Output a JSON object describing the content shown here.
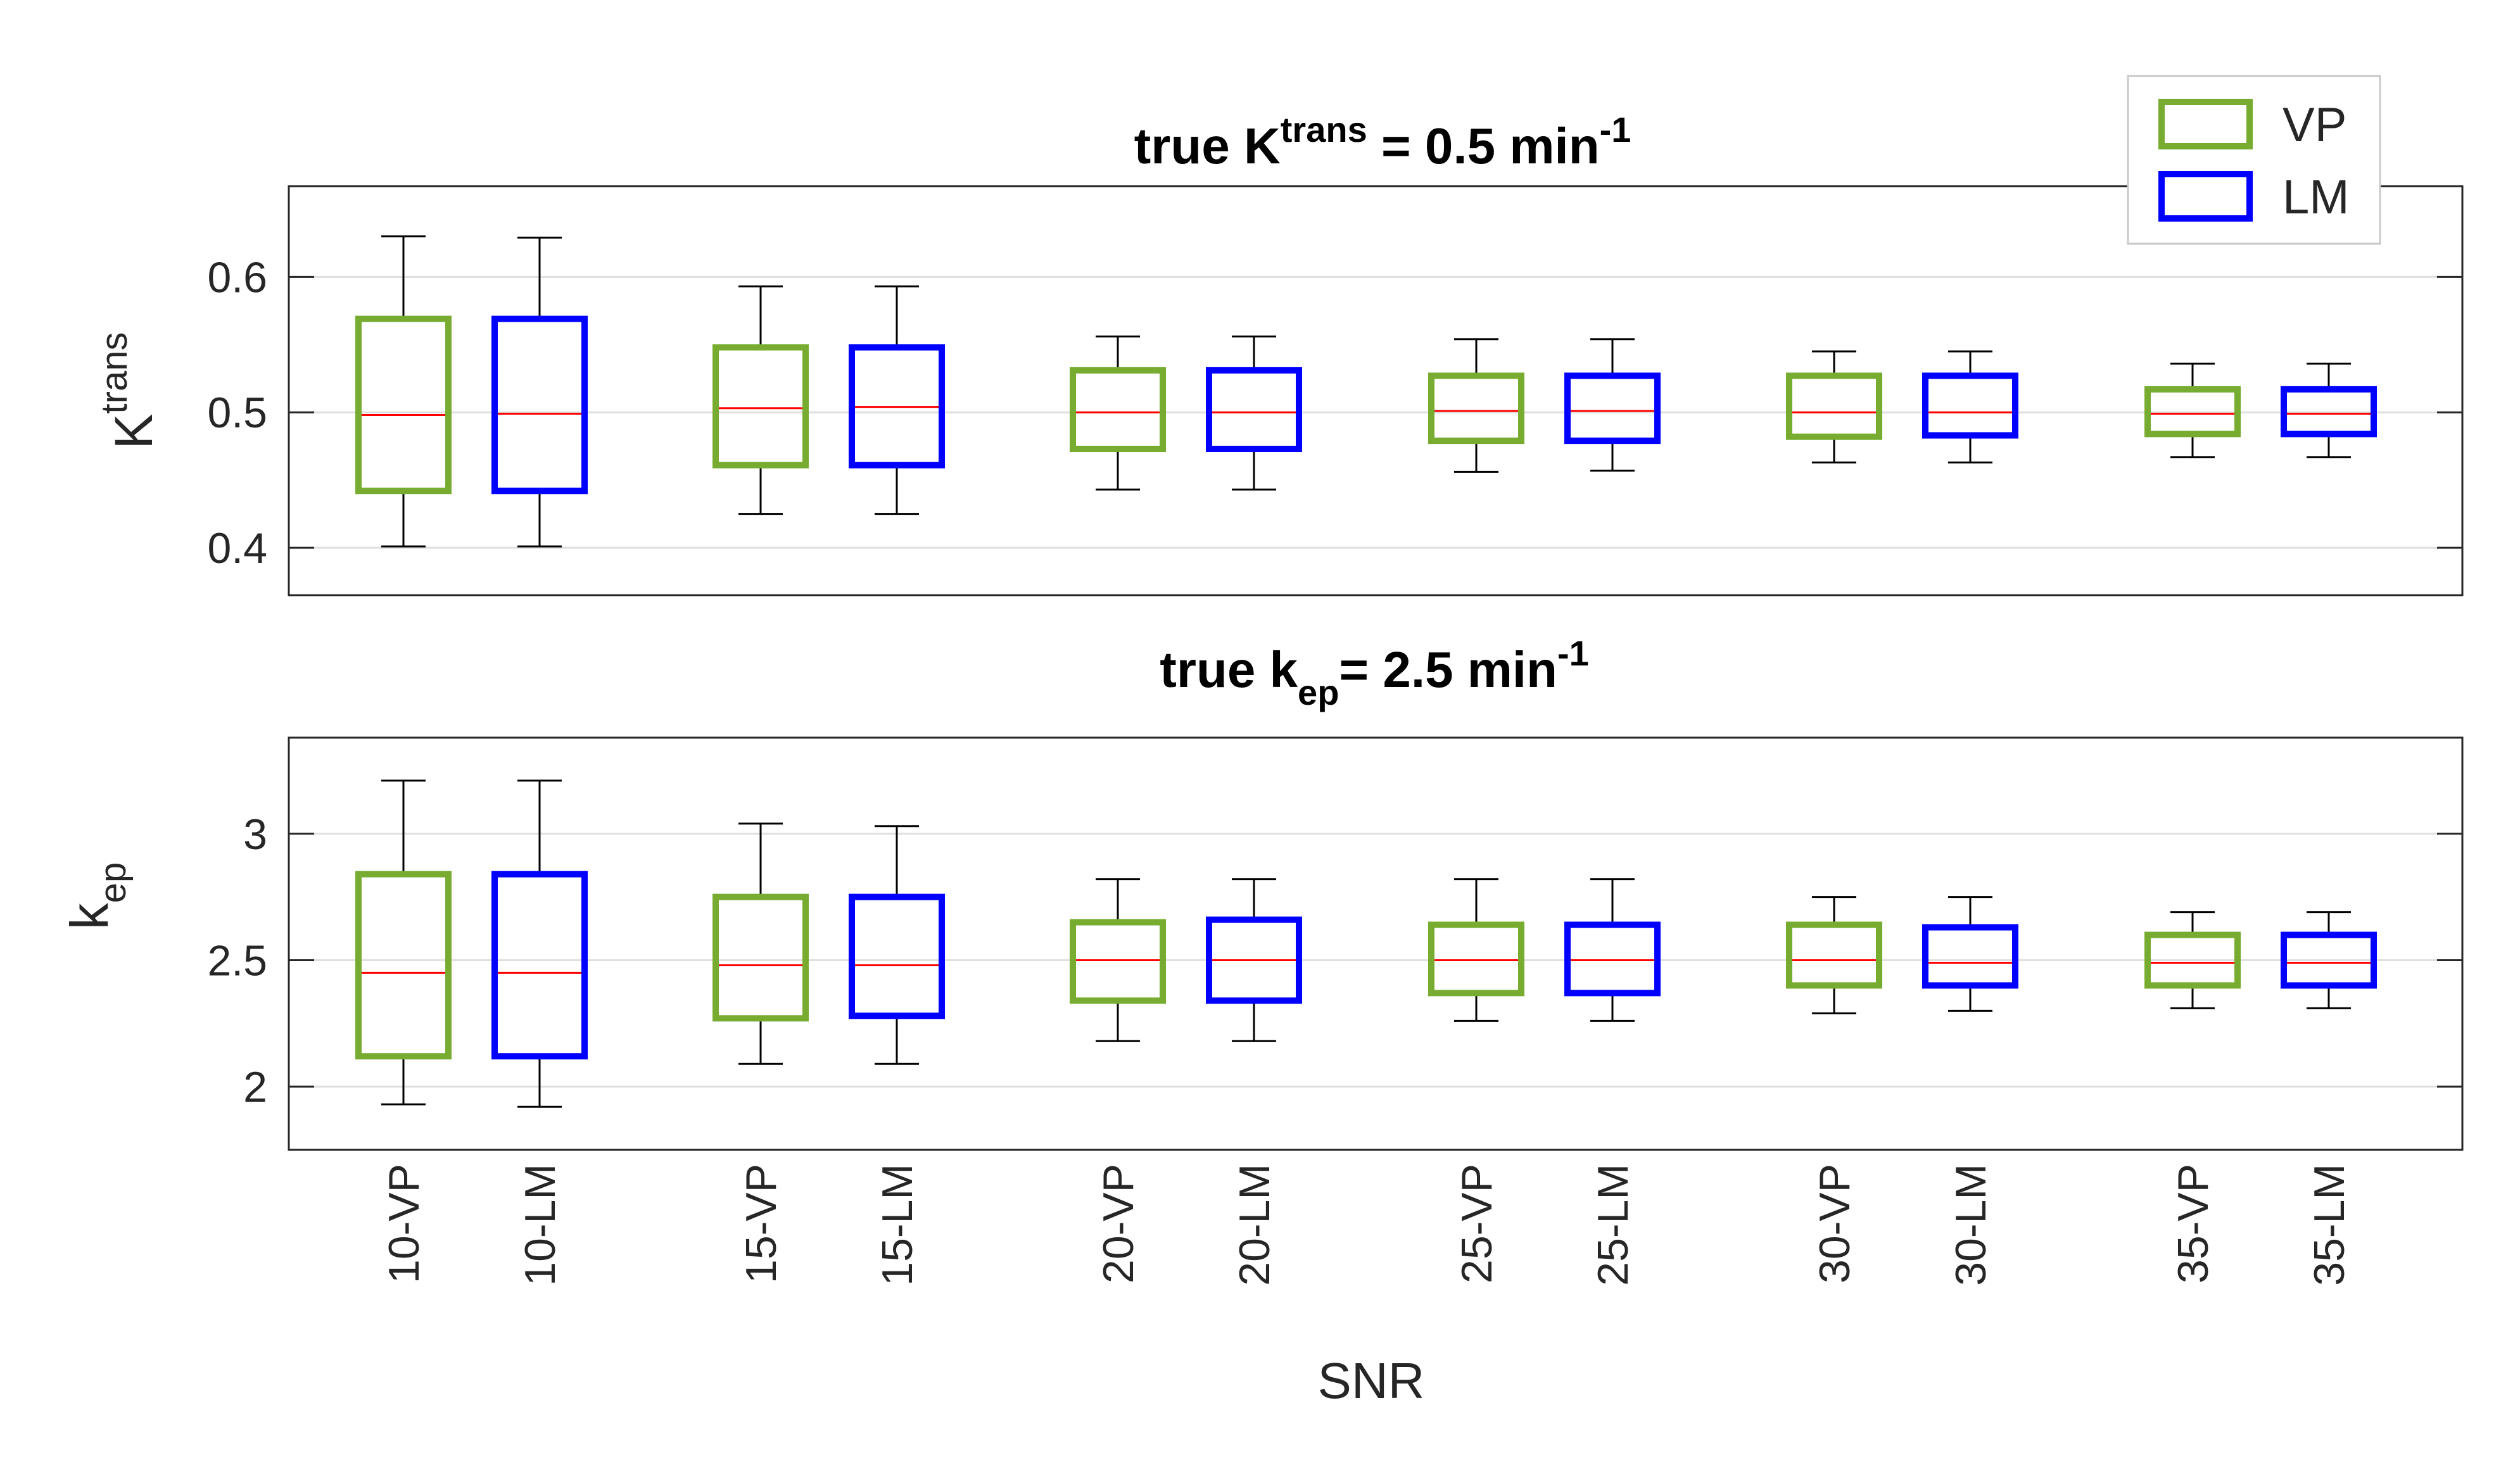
{
  "chart_data": [
    {
      "type": "box",
      "title": {
        "main": "true K",
        "sup": "trans",
        "rest": " = 0.5 min",
        "unit_sup": "-1"
      },
      "ylabel": {
        "main": "K",
        "sup": "trans"
      },
      "ylim": [
        0.365,
        0.667
      ],
      "yticks": [
        "0.4",
        "0.5",
        "0.6"
      ],
      "ytick_values": [
        0.4,
        0.5,
        0.6
      ],
      "grid": true,
      "boxes": [
        {
          "label": "10-VP",
          "method": "VP",
          "whisker_low": 0.401,
          "q1": 0.442,
          "median": 0.498,
          "q3": 0.569,
          "whisker_high": 0.63
        },
        {
          "label": "10-LM",
          "method": "LM",
          "whisker_low": 0.401,
          "q1": 0.442,
          "median": 0.499,
          "q3": 0.569,
          "whisker_high": 0.629
        },
        {
          "label": "15-VP",
          "method": "VP",
          "whisker_low": 0.425,
          "q1": 0.461,
          "median": 0.503,
          "q3": 0.548,
          "whisker_high": 0.593
        },
        {
          "label": "15-LM",
          "method": "LM",
          "whisker_low": 0.425,
          "q1": 0.461,
          "median": 0.504,
          "q3": 0.548,
          "whisker_high": 0.593
        },
        {
          "label": "20-VP",
          "method": "VP",
          "whisker_low": 0.443,
          "q1": 0.473,
          "median": 0.5,
          "q3": 0.531,
          "whisker_high": 0.556
        },
        {
          "label": "20-LM",
          "method": "LM",
          "whisker_low": 0.443,
          "q1": 0.473,
          "median": 0.5,
          "q3": 0.531,
          "whisker_high": 0.556
        },
        {
          "label": "25-VP",
          "method": "VP",
          "whisker_low": 0.456,
          "q1": 0.479,
          "median": 0.501,
          "q3": 0.527,
          "whisker_high": 0.554
        },
        {
          "label": "25-LM",
          "method": "LM",
          "whisker_low": 0.457,
          "q1": 0.479,
          "median": 0.501,
          "q3": 0.527,
          "whisker_high": 0.554
        },
        {
          "label": "30-VP",
          "method": "VP",
          "whisker_low": 0.463,
          "q1": 0.482,
          "median": 0.5,
          "q3": 0.527,
          "whisker_high": 0.545
        },
        {
          "label": "30-LM",
          "method": "LM",
          "whisker_low": 0.463,
          "q1": 0.483,
          "median": 0.5,
          "q3": 0.527,
          "whisker_high": 0.545
        },
        {
          "label": "35-VP",
          "method": "VP",
          "whisker_low": 0.467,
          "q1": 0.484,
          "median": 0.499,
          "q3": 0.517,
          "whisker_high": 0.536
        },
        {
          "label": "35-LM",
          "method": "LM",
          "whisker_low": 0.467,
          "q1": 0.484,
          "median": 0.499,
          "q3": 0.517,
          "whisker_high": 0.536
        }
      ]
    },
    {
      "type": "box",
      "title": {
        "main": "true k",
        "sub": "ep",
        "rest": "= 2.5 min",
        "unit_sup": "-1"
      },
      "ylabel": {
        "main": "k",
        "sub": "ep"
      },
      "ylim": [
        1.75,
        3.38
      ],
      "yticks": [
        "2",
        "2.5",
        "3"
      ],
      "ytick_values": [
        2,
        2.5,
        3
      ],
      "grid": true,
      "xlabel": "SNR",
      "categories": [
        "10-VP",
        "10-LM",
        "15-VP",
        "15-LM",
        "20-VP",
        "20-LM",
        "25-VP",
        "25-LM",
        "30-VP",
        "30-LM",
        "35-VP",
        "35-LM"
      ],
      "boxes": [
        {
          "label": "10-VP",
          "method": "VP",
          "whisker_low": 1.93,
          "q1": 2.12,
          "median": 2.45,
          "q3": 2.84,
          "whisker_high": 3.21
        },
        {
          "label": "10-LM",
          "method": "LM",
          "whisker_low": 1.92,
          "q1": 2.12,
          "median": 2.45,
          "q3": 2.84,
          "whisker_high": 3.21
        },
        {
          "label": "15-VP",
          "method": "VP",
          "whisker_low": 2.09,
          "q1": 2.27,
          "median": 2.48,
          "q3": 2.75,
          "whisker_high": 3.04
        },
        {
          "label": "15-LM",
          "method": "LM",
          "whisker_low": 2.09,
          "q1": 2.28,
          "median": 2.48,
          "q3": 2.75,
          "whisker_high": 3.03
        },
        {
          "label": "20-VP",
          "method": "VP",
          "whisker_low": 2.18,
          "q1": 2.34,
          "median": 2.5,
          "q3": 2.65,
          "whisker_high": 2.82
        },
        {
          "label": "20-LM",
          "method": "LM",
          "whisker_low": 2.18,
          "q1": 2.34,
          "median": 2.5,
          "q3": 2.66,
          "whisker_high": 2.82
        },
        {
          "label": "25-VP",
          "method": "VP",
          "whisker_low": 2.26,
          "q1": 2.37,
          "median": 2.5,
          "q3": 2.64,
          "whisker_high": 2.82
        },
        {
          "label": "25-LM",
          "method": "LM",
          "whisker_low": 2.26,
          "q1": 2.37,
          "median": 2.5,
          "q3": 2.64,
          "whisker_high": 2.82
        },
        {
          "label": "30-VP",
          "method": "VP",
          "whisker_low": 2.29,
          "q1": 2.4,
          "median": 2.5,
          "q3": 2.64,
          "whisker_high": 2.75
        },
        {
          "label": "30-LM",
          "method": "LM",
          "whisker_low": 2.3,
          "q1": 2.4,
          "median": 2.49,
          "q3": 2.63,
          "whisker_high": 2.75
        },
        {
          "label": "35-VP",
          "method": "VP",
          "whisker_low": 2.31,
          "q1": 2.4,
          "median": 2.49,
          "q3": 2.6,
          "whisker_high": 2.69
        },
        {
          "label": "35-LM",
          "method": "LM",
          "whisker_low": 2.31,
          "q1": 2.4,
          "median": 2.49,
          "q3": 2.6,
          "whisker_high": 2.69
        }
      ]
    }
  ],
  "legend": {
    "placement": "top-right",
    "items": [
      {
        "label": "VP",
        "color": "#77ac30"
      },
      {
        "label": "LM",
        "color": "#0000ff"
      }
    ]
  },
  "colors": {
    "VP": "#77ac30",
    "LM": "#0000ff",
    "median": "#ff0000",
    "whisker": "#000000",
    "grid": "#dfdfdf",
    "axis": "#262626"
  }
}
